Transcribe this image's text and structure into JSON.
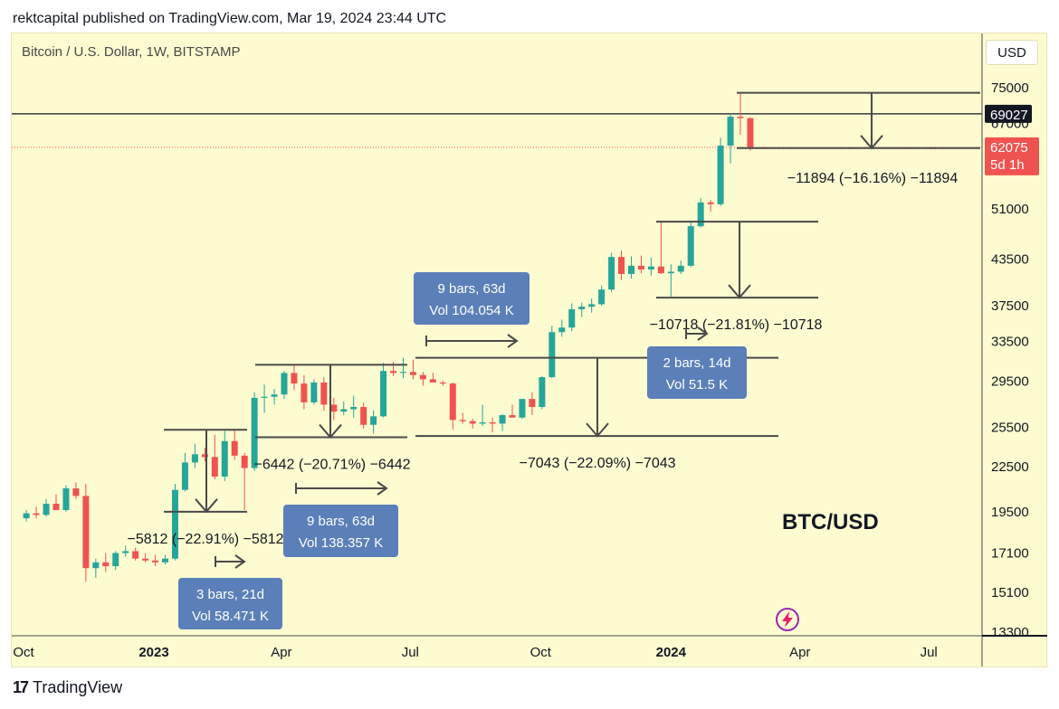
{
  "header": {
    "published": "rektcapital published on TradingView.com, Mar 19, 2024 23:44 UTC"
  },
  "chart_meta": {
    "symbol": "Bitcoin / U.S. Dollar, 1W, BITSTAMP",
    "currency_button": "USD",
    "watermark": "BTC/USD"
  },
  "footer": {
    "brand": "TradingView",
    "brand_icon": "tradingview-logo-icon"
  },
  "colors": {
    "up": "#26a69a",
    "down": "#ef5350",
    "background": "#fdfbd0",
    "box": "#5b7fb8",
    "level_line": "#4a4a4a"
  },
  "chart_data": {
    "type": "candlestick",
    "title": "",
    "scale": "log",
    "ylim": [
      13300,
      75000
    ],
    "y_ticks": [
      75000,
      67000,
      51000,
      43500,
      37500,
      33500,
      29500,
      25500,
      22500,
      19500,
      17100,
      15100,
      13300
    ],
    "x_ticks": [
      {
        "label": "Oct",
        "date": "2022-10-01",
        "bold": false
      },
      {
        "label": "2023",
        "date": "2023-01-01",
        "bold": true
      },
      {
        "label": "Apr",
        "date": "2023-04-01",
        "bold": false
      },
      {
        "label": "Jul",
        "date": "2023-07-01",
        "bold": false
      },
      {
        "label": "Oct",
        "date": "2023-10-01",
        "bold": false
      },
      {
        "label": "2024",
        "date": "2024-01-01",
        "bold": true
      },
      {
        "label": "Apr",
        "date": "2024-04-01",
        "bold": false
      },
      {
        "label": "Jul",
        "date": "2024-07-01",
        "bold": false
      }
    ],
    "first_candle_date": "2022-10-03",
    "candles": [
      [
        19100,
        19600,
        18900,
        19400
      ],
      [
        19400,
        19800,
        19100,
        19300
      ],
      [
        19300,
        20300,
        19200,
        20000
      ],
      [
        20000,
        20600,
        19800,
        19600
      ],
      [
        19600,
        21200,
        19500,
        21000
      ],
      [
        21000,
        21400,
        20300,
        20500
      ],
      [
        20500,
        21300,
        15600,
        16300
      ],
      [
        16300,
        16800,
        15800,
        16600
      ],
      [
        16600,
        17100,
        16100,
        16400
      ],
      [
        16400,
        17200,
        16200,
        17100
      ],
      [
        17100,
        17500,
        16900,
        17200
      ],
      [
        17200,
        17400,
        16700,
        16800
      ],
      [
        16800,
        17100,
        16600,
        16700
      ],
      [
        16700,
        17000,
        16400,
        16600
      ],
      [
        16600,
        17000,
        16500,
        16800
      ],
      [
        16800,
        21300,
        16700,
        20900
      ],
      [
        20900,
        23500,
        20800,
        22800
      ],
      [
        22800,
        24200,
        22400,
        23400
      ],
      [
        23400,
        23900,
        22900,
        23200
      ],
      [
        23200,
        24900,
        21600,
        21800
      ],
      [
        21800,
        25200,
        21500,
        24400
      ],
      [
        24400,
        25300,
        23000,
        23300
      ],
      [
        23300,
        23500,
        19600,
        22400
      ],
      [
        22400,
        28500,
        22200,
        28000
      ],
      [
        28000,
        29200,
        26700,
        28100
      ],
      [
        28100,
        28800,
        27400,
        28300
      ],
      [
        28300,
        30500,
        27900,
        30300
      ],
      [
        30300,
        31000,
        28700,
        29300
      ],
      [
        29300,
        30100,
        27000,
        27600
      ],
      [
        27600,
        29700,
        27400,
        29400
      ],
      [
        29400,
        29900,
        26900,
        27400
      ],
      [
        27400,
        28000,
        26100,
        26800
      ],
      [
        26800,
        27700,
        26500,
        27000
      ],
      [
        27000,
        28200,
        26300,
        27200
      ],
      [
        27200,
        27600,
        25400,
        25700
      ],
      [
        25700,
        26900,
        25000,
        26400
      ],
      [
        26400,
        31300,
        26300,
        30500
      ],
      [
        30500,
        31400,
        30000,
        30300
      ],
      [
        30300,
        31800,
        29800,
        30400
      ],
      [
        30400,
        31600,
        29700,
        30100
      ],
      [
        30100,
        30400,
        29100,
        29700
      ],
      [
        29700,
        30300,
        29400,
        29400
      ],
      [
        29400,
        29600,
        29100,
        29300
      ],
      [
        29300,
        29400,
        25300,
        26100
      ],
      [
        26100,
        26700,
        25800,
        26000
      ],
      [
        26000,
        26200,
        25400,
        25800
      ],
      [
        25800,
        27400,
        25600,
        25900
      ],
      [
        25900,
        26300,
        25100,
        25800
      ],
      [
        25800,
        26600,
        25200,
        26500
      ],
      [
        26500,
        27400,
        26400,
        26300
      ],
      [
        26300,
        27800,
        26200,
        27900
      ],
      [
        27900,
        28500,
        26500,
        27200
      ],
      [
        27200,
        30000,
        27000,
        29900
      ],
      [
        29900,
        35200,
        29800,
        34500
      ],
      [
        34500,
        35900,
        34000,
        35000
      ],
      [
        35000,
        37800,
        34600,
        37100
      ],
      [
        37100,
        37900,
        36200,
        37400
      ],
      [
        37400,
        38400,
        36700,
        37700
      ],
      [
        37700,
        40000,
        37500,
        39500
      ],
      [
        39500,
        44400,
        39200,
        43800
      ],
      [
        43800,
        44700,
        40700,
        41500
      ],
      [
        41500,
        43900,
        40900,
        42600
      ],
      [
        42600,
        44000,
        41600,
        42100
      ],
      [
        42100,
        43700,
        41300,
        42500
      ],
      [
        42500,
        49000,
        41500,
        41600
      ],
      [
        41600,
        42800,
        38600,
        41800
      ],
      [
        41800,
        43300,
        41500,
        42600
      ],
      [
        42600,
        48900,
        42400,
        48300
      ],
      [
        48300,
        52800,
        48100,
        52100
      ],
      [
        52100,
        52500,
        50600,
        51800
      ],
      [
        51800,
        64000,
        51500,
        62400
      ],
      [
        62400,
        69200,
        59000,
        68400
      ],
      [
        68400,
        73800,
        64600,
        68100
      ],
      [
        68100,
        68300,
        61400,
        62075
      ]
    ],
    "reference_lines": [
      {
        "label": "69027",
        "value": 69027
      },
      {
        "label": "62075",
        "value": 62075,
        "sublabel": "5d 1h"
      }
    ],
    "measurements": [
      {
        "label": "−5812 (−22.91%) −5812",
        "from": 25300,
        "to": 19500,
        "bars_label": "3 bars, 21d",
        "vol_label": "Vol 58.471 K"
      },
      {
        "label": "−6442 (−20.71%) −6442",
        "from": 31100,
        "to": 24700,
        "bars_label": "9 bars, 63d",
        "vol_label": "Vol 138.357 K"
      },
      {
        "label": "−7043 (−22.09%) −7043",
        "from": 31800,
        "to": 24800,
        "bars_label": "9 bars, 63d",
        "vol_label": "Vol 104.054 K"
      },
      {
        "label": "−10718 (−21.81%) −10718",
        "from": 49000,
        "to": 38500,
        "bars_label": "2 bars, 14d",
        "vol_label": "Vol 51.5 K"
      },
      {
        "label": "−11894 (−16.16%) −11894",
        "from": 73800,
        "to": 61900,
        "bars_label": "",
        "vol_label": ""
      }
    ]
  }
}
